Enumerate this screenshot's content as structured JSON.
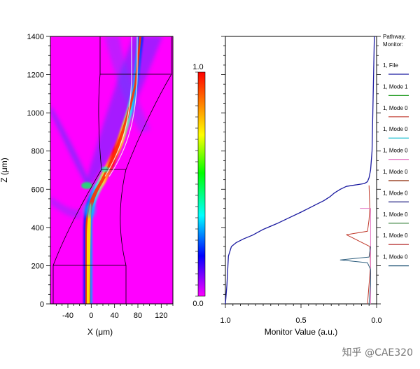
{
  "chart_data": [
    {
      "type": "heatmap",
      "xlabel": "X (μm)",
      "ylabel": "Z (μm)",
      "xlim": [
        -70,
        140
      ],
      "ylim": [
        0,
        1400
      ],
      "xticks": [
        "-40",
        "0",
        "40",
        "80",
        "120"
      ],
      "xtick_values": [
        -40,
        0,
        40,
        80,
        120
      ],
      "yticks": [
        "0",
        "200",
        "400",
        "600",
        "800",
        "1000",
        "1200",
        "1400"
      ],
      "ytick_values": [
        0,
        200,
        400,
        600,
        800,
        1000,
        1200,
        1400
      ],
      "background_color": "#ff00ff",
      "colorbar": {
        "max_label": "1.0",
        "min_label": "0.0",
        "range": [
          0.0,
          1.0
        ]
      },
      "structure_outline": {
        "input_straight": {
          "x_range": [
            -65,
            65
          ],
          "z_range": [
            0,
            200
          ]
        },
        "taper_top_z": 700,
        "output_straight": {
          "x_range": [
            10,
            140
          ],
          "z_range": [
            1200,
            1400
          ]
        }
      }
    },
    {
      "type": "line",
      "xlabel": "Monitor Value (a.u.)",
      "xlim": [
        1.0,
        0.0
      ],
      "xticks": [
        "1.0",
        "0.5",
        "0.0"
      ],
      "xtick_values": [
        1.0,
        0.5,
        0.0
      ],
      "ylim": [
        0,
        1400
      ],
      "legend_header": [
        "Pathway,",
        "Monitor:"
      ],
      "legend": [
        {
          "label": "1, File",
          "color": "#1a1aa0"
        },
        {
          "label": "1, Mode 1",
          "color": "#2ca02c"
        },
        {
          "label": "1, Mode 0",
          "color": "#c0392b"
        },
        {
          "label": "1, Mode 0",
          "color": "#17becf"
        },
        {
          "label": "1, Mode 0",
          "color": "#e377c2"
        },
        {
          "label": "1, Mode 0",
          "color": "#8b2500"
        },
        {
          "label": "1, Mode 0",
          "color": "#1a1a80"
        },
        {
          "label": "1, Mode 0",
          "color": "#2e7d32"
        },
        {
          "label": "1, Mode 0",
          "color": "#b22222"
        },
        {
          "label": "1, Mode 0",
          "color": "#2e5e7e"
        }
      ],
      "series": [
        {
          "name": "1, File",
          "color": "#1a1aa0",
          "x": [
            1.0,
            0.99,
            0.98,
            0.96,
            0.93,
            0.88,
            0.82,
            0.75,
            0.66,
            0.58,
            0.5,
            0.45,
            0.4,
            0.35,
            0.31,
            0.28,
            0.24,
            0.2,
            0.16,
            0.12,
            0.08,
            0.06,
            0.05,
            0.04,
            0.03,
            0.025,
            0.02,
            0.015
          ],
          "y": [
            0,
            100,
            250,
            300,
            320,
            340,
            360,
            390,
            420,
            450,
            480,
            500,
            520,
            540,
            560,
            580,
            600,
            615,
            620,
            625,
            630,
            640,
            660,
            700,
            800,
            1000,
            1200,
            1400
          ]
        },
        {
          "name": "1, Mode 0",
          "color": "#c0392b",
          "x": [
            0.06,
            0.05,
            0.04,
            0.045,
            0.2,
            0.06,
            0.05,
            0.045,
            0.05
          ],
          "y": [
            0,
            100,
            200,
            300,
            362,
            380,
            440,
            500,
            620
          ]
        },
        {
          "name": "1, Mode 0",
          "color": "#e377c2",
          "x": [
            0.04,
            0.04,
            0.04,
            0.11
          ],
          "y": [
            0,
            200,
            500,
            500
          ]
        },
        {
          "name": "1, Mode 0",
          "color": "#2e5e7e",
          "x": [
            0.05,
            0.04,
            0.04,
            0.06,
            0.24,
            0.05,
            0.04
          ],
          "y": [
            0,
            100,
            180,
            215,
            230,
            245,
            300
          ]
        }
      ]
    }
  ],
  "watermark": "知乎 @CAE320"
}
